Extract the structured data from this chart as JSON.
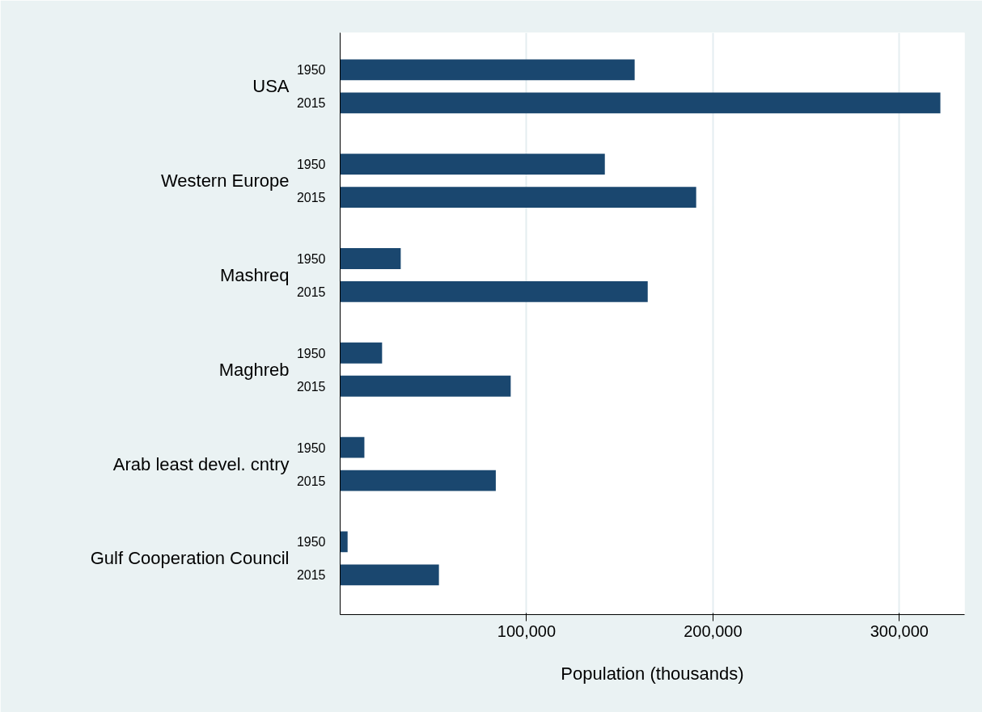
{
  "chart_data": {
    "type": "bar",
    "orientation": "horizontal",
    "xlabel": "Population (thousands)",
    "categories": [
      "USA",
      "Western Europe",
      "Mashreq",
      "Maghreb",
      "Arab least devel. cntry",
      "Gulf Cooperation Council"
    ],
    "series": [
      {
        "name": "1950",
        "color": "#1a476f",
        "values": [
          158000,
          142000,
          32500,
          22500,
          13000,
          4000
        ]
      },
      {
        "name": "2015",
        "color": "#1a476f",
        "values": [
          322000,
          191000,
          165000,
          91500,
          83500,
          53000
        ]
      }
    ],
    "xlim": [
      0,
      335000
    ],
    "xticks": [
      {
        "value": 100000,
        "label": "100,000"
      },
      {
        "value": 200000,
        "label": "200,000"
      },
      {
        "value": 300000,
        "label": "300,000"
      }
    ],
    "grid": "x"
  }
}
